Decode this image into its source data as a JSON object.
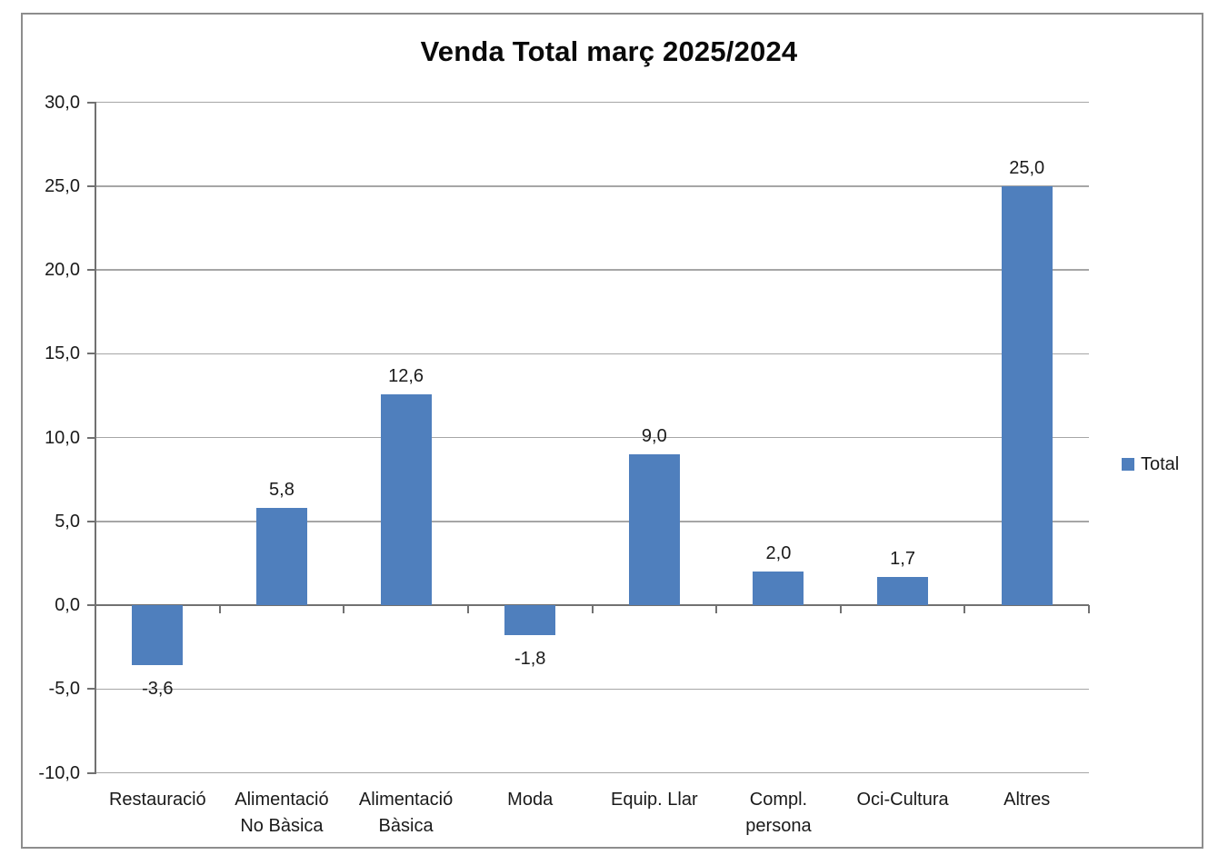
{
  "title": "Venda Total març 2025/2024",
  "legend": {
    "label": "Total"
  },
  "colors": {
    "bar": "#4f7fbd",
    "gridline": "#a6a6a6",
    "axis": "#717171",
    "text": "#1a1a1a",
    "frame_border": "#8d8d8d",
    "background": "#ffffff"
  },
  "chart_data": {
    "type": "bar",
    "title": "Venda Total març 2025/2024",
    "categories": [
      "Restauració",
      "Alimentació No Bàsica",
      "Alimentació Bàsica",
      "Moda",
      "Equip. Llar",
      "Compl. persona",
      "Oci-Cultura",
      "Altres"
    ],
    "category_label_lines": [
      [
        "Restauració"
      ],
      [
        "Alimentació",
        "No Bàsica"
      ],
      [
        "Alimentació",
        "Bàsica"
      ],
      [
        "Moda"
      ],
      [
        "Equip. Llar"
      ],
      [
        "Compl.",
        "persona"
      ],
      [
        "Oci-Cultura"
      ],
      [
        "Altres"
      ]
    ],
    "series": [
      {
        "name": "Total",
        "color": "#4f7fbd",
        "values": [
          -3.6,
          5.8,
          12.6,
          -1.8,
          9.0,
          2.0,
          1.7,
          25.0
        ]
      }
    ],
    "data_labels": [
      "-3,6",
      "5,8",
      "12,6",
      "-1,8",
      "9,0",
      "2,0",
      "1,7",
      "25,0"
    ],
    "y_ticks": [
      {
        "value": 30,
        "label": "30,0"
      },
      {
        "value": 25,
        "label": "25,0"
      },
      {
        "value": 20,
        "label": "20,0"
      },
      {
        "value": 15,
        "label": "15,0"
      },
      {
        "value": 10,
        "label": "10,0"
      },
      {
        "value": 5,
        "label": "5,0"
      },
      {
        "value": 0,
        "label": "0,0"
      },
      {
        "value": -5,
        "label": "-5,0"
      },
      {
        "value": -10,
        "label": "-10,0"
      }
    ],
    "ylim": [
      -10,
      30
    ],
    "grid": true,
    "legend_position": "right",
    "number_format": "comma decimal, 1 decimal place"
  }
}
